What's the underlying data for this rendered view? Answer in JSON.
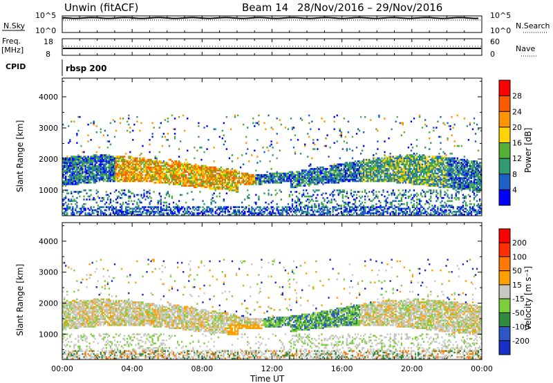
{
  "header": {
    "title": "Unwin (fitACF)",
    "beam": "Beam 14",
    "date_range": "28/Nov/2016 – 29/Nov/2016"
  },
  "top_panels": {
    "nsky_label": "N.Sky",
    "nsearch_label": "N.Search",
    "noise_ticks_left": [
      "10^5",
      "10^0"
    ],
    "noise_ticks_right": [
      "10^5",
      "10^0"
    ],
    "freq_label_line1": "Freq.",
    "freq_label_line2": "[MHz]",
    "freq_ticks": [
      "18",
      "8"
    ],
    "nave_label": "Nave",
    "nave_ticks": [
      "60",
      "0"
    ],
    "cpid_label": "CPID",
    "cpid_value": "rbsp 200"
  },
  "chart_data": [
    {
      "type": "heatmap",
      "name": "power",
      "ylabel": "Slant Range [km]",
      "xlabel": "Time UT",
      "ylim": [
        180,
        4600
      ],
      "yticks": [
        1000,
        2000,
        3000,
        4000
      ],
      "x_ticklabels": [
        "00:00",
        "04:00",
        "08:00",
        "12:00",
        "16:00",
        "20:00",
        "00:00"
      ],
      "colorbar": {
        "label": "Power [dB]",
        "ticks": [
          "4",
          "8",
          "12",
          "16",
          "20",
          "24",
          "28"
        ],
        "colors": [
          "#0000ff",
          "#1c60c8",
          "#2f9b6e",
          "#55b035",
          "#ffd400",
          "#ff9400",
          "#ff5a00",
          "#ff0000"
        ]
      }
    },
    {
      "type": "heatmap",
      "name": "velocity",
      "ylabel": "Slant Range [km]",
      "xlabel": "Time UT",
      "ylim": [
        180,
        4600
      ],
      "yticks": [
        1000,
        2000,
        3000,
        4000
      ],
      "x_ticklabels": [
        "00:00",
        "04:00",
        "08:00",
        "12:00",
        "16:00",
        "20:00",
        "00:00"
      ],
      "colorbar": {
        "label": "Velocity [m s⁻¹]",
        "ticks": [
          "200",
          "100",
          "50",
          "15",
          "-15",
          "-50",
          "-100",
          "-200"
        ],
        "colors": [
          "#1a2fc8",
          "#2c57c8",
          "#2e8b3f",
          "#7bcf3a",
          "#c8c8c0",
          "#ffa000",
          "#ff7800",
          "#ff3000",
          "#ff0000"
        ]
      }
    }
  ],
  "xaxis": {
    "label": "Time UT"
  }
}
